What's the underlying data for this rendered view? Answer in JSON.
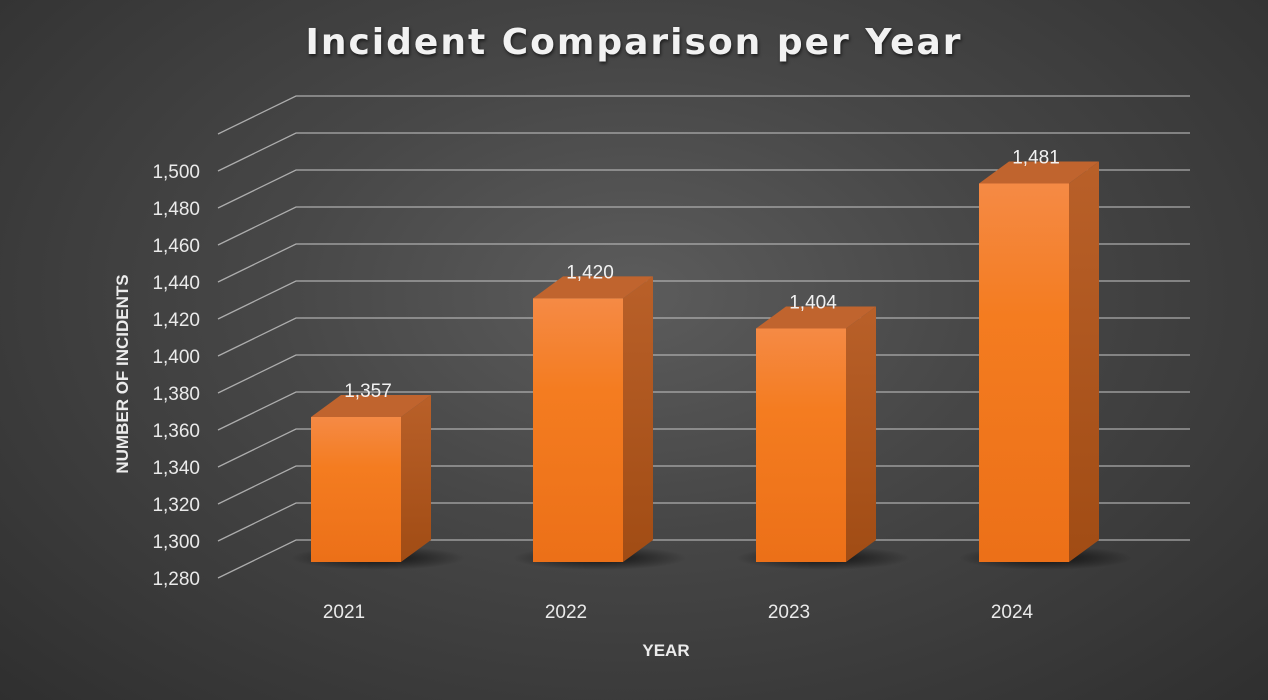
{
  "chart_data": {
    "type": "bar",
    "title": "Incident Comparison per Year",
    "xlabel": "YEAR",
    "ylabel": "NUMBER OF INCIDENTS",
    "categories": [
      "2021",
      "2022",
      "2023",
      "2024"
    ],
    "values": [
      1357,
      1420,
      1404,
      1481
    ],
    "data_labels": [
      "1,357",
      "1,420",
      "1,404",
      "1,481"
    ],
    "ylim": [
      1280,
      1500
    ],
    "y_ticks": [
      1280,
      1300,
      1320,
      1340,
      1360,
      1380,
      1400,
      1420,
      1440,
      1460,
      1480,
      1500
    ],
    "y_tick_labels": [
      "1,280",
      "1,300",
      "1,320",
      "1,340",
      "1,360",
      "1,380",
      "1,400",
      "1,420",
      "1,440",
      "1,460",
      "1,480",
      "1,500"
    ],
    "grid": true,
    "legend": "none",
    "style": "3d-column",
    "colors": {
      "bar_front": "#f47c20",
      "bar_top": "#c0642e",
      "bar_side": "#b0541a",
      "background": "#4a4a4a",
      "gridline": "#bfbfbf",
      "text": "#eaeaea"
    }
  }
}
